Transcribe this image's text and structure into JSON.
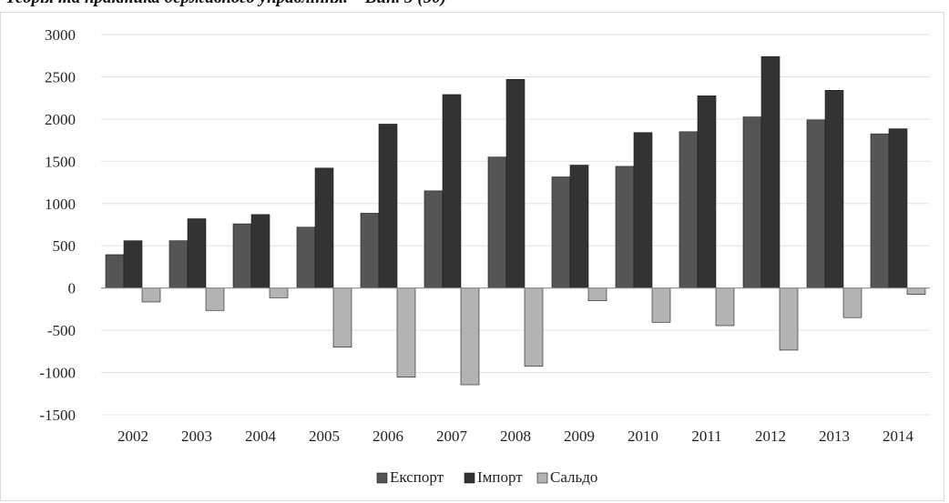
{
  "page": {
    "header_text": "Теорія та практика державного управління. – Вип. 3 (50)"
  },
  "chart_data": {
    "type": "bar",
    "categories": [
      "2002",
      "2003",
      "2004",
      "2005",
      "2006",
      "2007",
      "2008",
      "2009",
      "2010",
      "2011",
      "2012",
      "2013",
      "2014"
    ],
    "series": [
      {
        "name": "Експорт",
        "color": "#555555",
        "values": [
          395,
          560,
          760,
          720,
          885,
          1150,
          1550,
          1315,
          1440,
          1850,
          2025,
          1990,
          1825
        ]
      },
      {
        "name": "Імпорт",
        "color": "#333333",
        "values": [
          560,
          820,
          870,
          1420,
          1940,
          2290,
          2470,
          1455,
          1840,
          2275,
          2740,
          2340,
          1885
        ]
      },
      {
        "name": "Сальдо",
        "color": "#b3b3b3",
        "values": [
          -165,
          -265,
          -115,
          -700,
          -1055,
          -1145,
          -925,
          -150,
          -405,
          -445,
          -735,
          -350,
          -75
        ]
      }
    ],
    "y_ticks": [
      "3000",
      "2500",
      "2000",
      "1500",
      "1000",
      "500",
      "0",
      "-500",
      "-1000",
      "-1500"
    ],
    "ylim": [
      -1500,
      3000
    ],
    "grid": true,
    "legend_position": "bottom"
  }
}
